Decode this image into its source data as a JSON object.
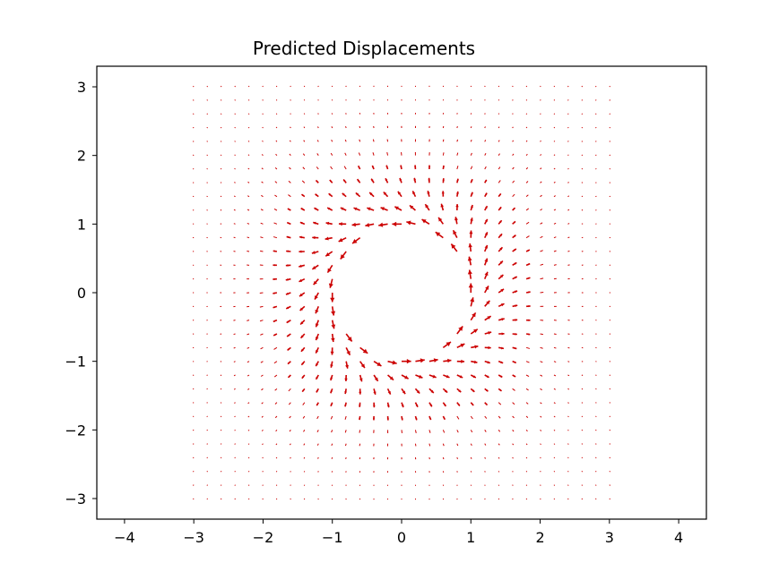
{
  "chart_data": {
    "type": "quiver",
    "title": "Predicted Displacements",
    "xlabel": "",
    "ylabel": "",
    "xlim": [
      -4.4,
      4.4
    ],
    "ylim": [
      -3.3,
      3.3
    ],
    "xticks": [
      -4,
      -3,
      -2,
      -1,
      0,
      1,
      2,
      3,
      4
    ],
    "yticks": [
      -3,
      -2,
      -1,
      0,
      1,
      2,
      3
    ],
    "xtick_labels": [
      "−4",
      "−3",
      "−2",
      "−1",
      "0",
      "1",
      "2",
      "3",
      "4"
    ],
    "ytick_labels": [
      "−3",
      "−2",
      "−1",
      "0",
      "1",
      "2",
      "3"
    ],
    "grid": false,
    "arrow_color": "#cc0000",
    "grid_points": {
      "x_range": [
        -3,
        3
      ],
      "y_range": [
        -3,
        3
      ],
      "count_per_axis": 31,
      "excluded_region": "unit circle (r < 1)"
    },
    "field_description": "Displacements form a vortex around a unit-radius hole: near the hole vectors are tangential (circulating), far from the hole they point radially, with magnitude decaying toward the grid edges."
  }
}
